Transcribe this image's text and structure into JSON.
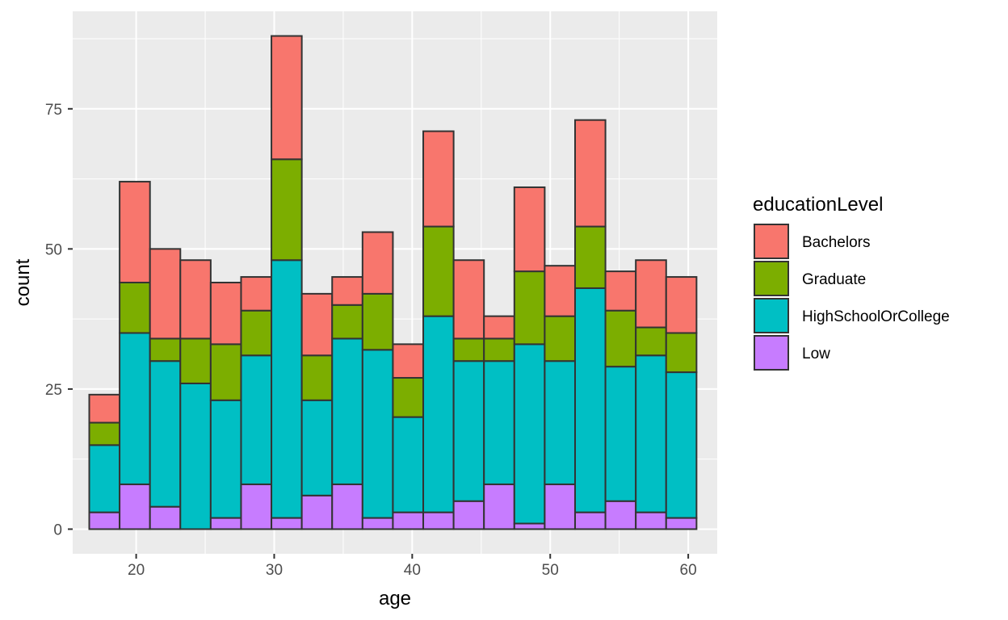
{
  "chart_data": {
    "type": "bar",
    "stacked": true,
    "title": "",
    "xlabel": "age",
    "ylabel": "count",
    "xlim": [
      15.4,
      62.1
    ],
    "ylim": [
      -4.4,
      92.4
    ],
    "x_ticks": [
      20,
      30,
      40,
      50,
      60
    ],
    "y_ticks": [
      0,
      25,
      50,
      75
    ],
    "grid": true,
    "legend": {
      "title": "educationLevel",
      "position": "right"
    },
    "bins": [
      [
        16.6,
        18.8
      ],
      [
        18.8,
        21.0
      ],
      [
        21.0,
        23.2
      ],
      [
        23.2,
        25.4
      ],
      [
        25.4,
        27.6
      ],
      [
        27.6,
        29.8
      ],
      [
        29.8,
        32.0
      ],
      [
        32.0,
        34.2
      ],
      [
        34.2,
        36.4
      ],
      [
        36.4,
        38.6
      ],
      [
        38.6,
        40.8
      ],
      [
        40.8,
        43.0
      ],
      [
        43.0,
        45.2
      ],
      [
        45.2,
        47.4
      ],
      [
        47.4,
        49.6
      ],
      [
        49.6,
        51.8
      ],
      [
        51.8,
        54.0
      ],
      [
        54.0,
        56.2
      ],
      [
        56.2,
        58.4
      ],
      [
        58.4,
        60.6
      ]
    ],
    "series": [
      {
        "name": "Low",
        "color": "#C77CFF",
        "values": [
          3,
          8,
          4,
          0,
          2,
          8,
          2,
          6,
          8,
          2,
          3,
          3,
          5,
          8,
          1,
          8,
          3,
          5,
          3,
          2
        ]
      },
      {
        "name": "HighSchoolOrCollege",
        "color": "#00BFC4",
        "values": [
          12,
          27,
          26,
          26,
          21,
          23,
          46,
          17,
          26,
          30,
          17,
          35,
          25,
          22,
          32,
          22,
          40,
          24,
          28,
          26
        ]
      },
      {
        "name": "Graduate",
        "color": "#7CAE00",
        "values": [
          4,
          9,
          4,
          8,
          10,
          8,
          18,
          8,
          6,
          10,
          7,
          16,
          4,
          4,
          13,
          8,
          11,
          10,
          5,
          7
        ]
      },
      {
        "name": "Bachelors",
        "color": "#F8766D",
        "values": [
          5,
          18,
          16,
          14,
          11,
          6,
          22,
          11,
          5,
          11,
          6,
          17,
          14,
          4,
          15,
          9,
          19,
          7,
          12,
          10
        ]
      }
    ],
    "legend_order": [
      "Bachelors",
      "Graduate",
      "HighSchoolOrCollege",
      "Low"
    ]
  },
  "colors": {
    "panel_background": "#EBEBEB",
    "grid_major": "#FFFFFF",
    "bar_outline": "#333333"
  }
}
